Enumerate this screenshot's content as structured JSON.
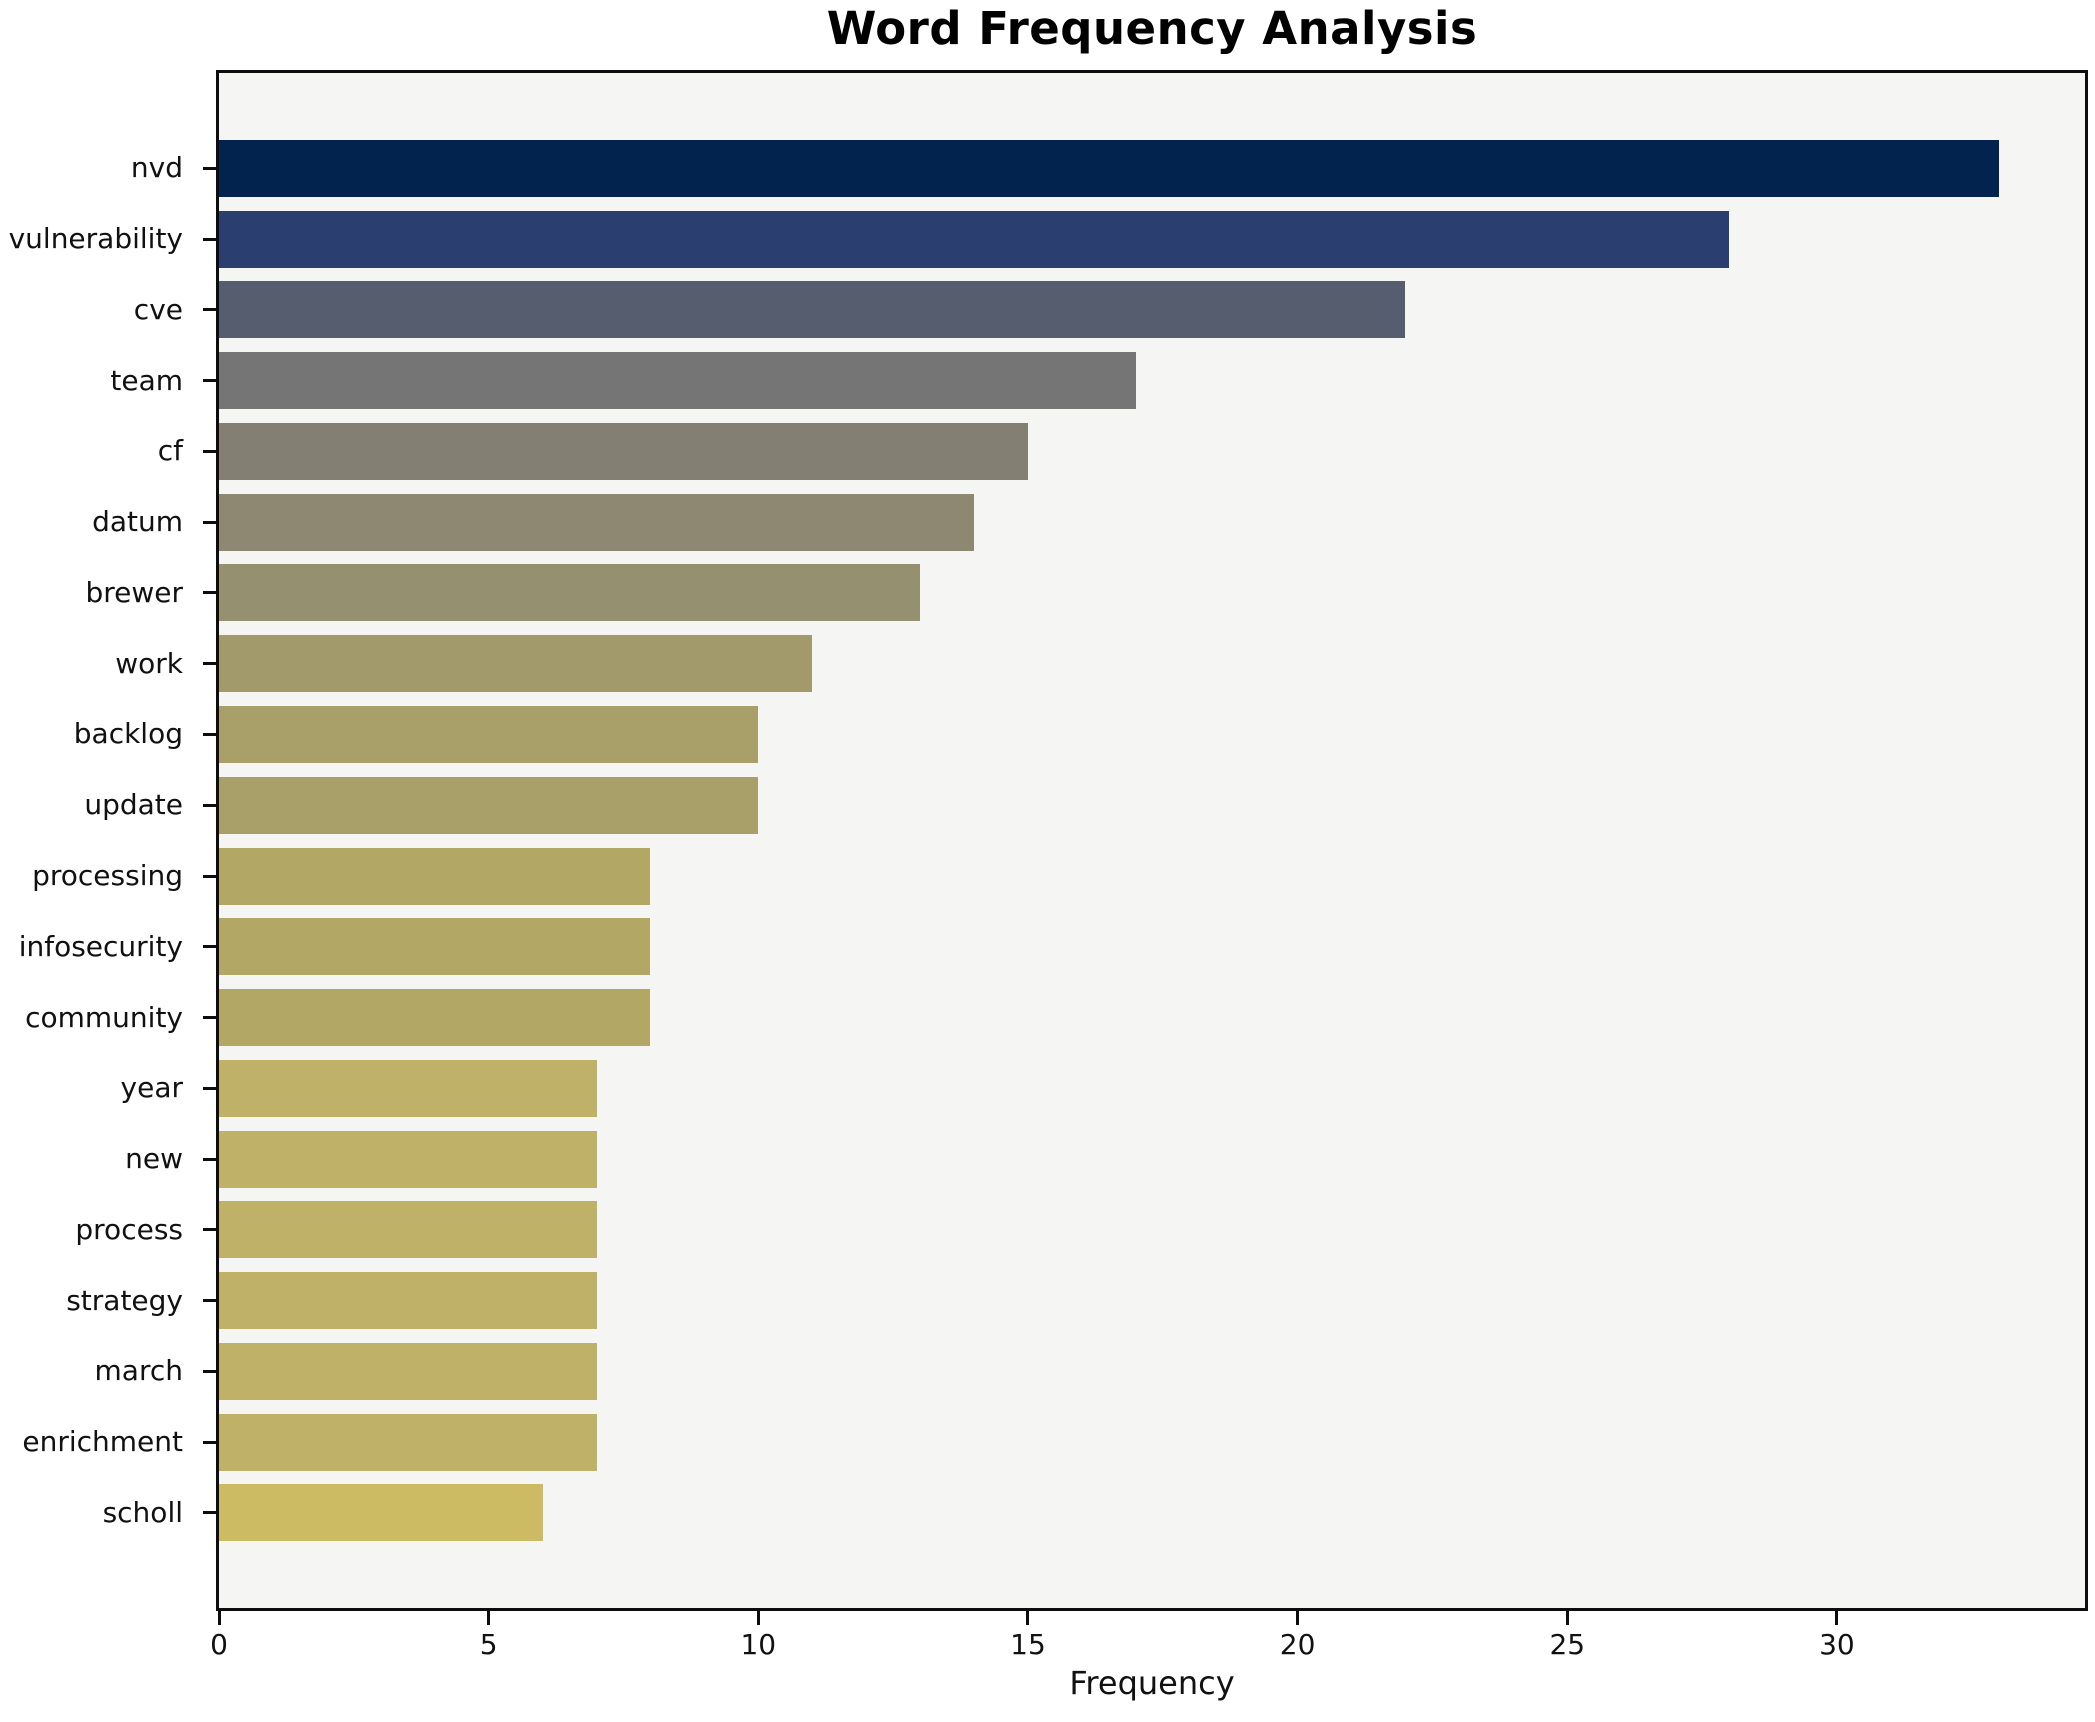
{
  "title": "Word Frequency Analysis",
  "chart_data": {
    "type": "bar",
    "orientation": "horizontal",
    "title": "Word Frequency Analysis",
    "xlabel": "Frequency",
    "ylabel": "",
    "categories": [
      "nvd",
      "vulnerability",
      "cve",
      "team",
      "cf",
      "datum",
      "brewer",
      "work",
      "backlog",
      "update",
      "processing",
      "infosecurity",
      "community",
      "year",
      "new",
      "process",
      "strategy",
      "march",
      "enrichment",
      "scholl"
    ],
    "values": [
      33,
      28,
      22,
      17,
      15,
      14,
      13,
      11,
      10,
      10,
      8,
      8,
      8,
      7,
      7,
      7,
      7,
      7,
      7,
      6
    ],
    "bar_colors": [
      "#01234e",
      "#2a3e6f",
      "#565d6e",
      "#757575",
      "#838073",
      "#8e8873",
      "#959070",
      "#a39a6b",
      "#a9a069",
      "#a9a069",
      "#b2a765",
      "#b2a765",
      "#b2a765",
      "#bfb168",
      "#bfb168",
      "#bfb168",
      "#bfb168",
      "#bfb168",
      "#bfb168",
      "#ccbb63"
    ],
    "xlim": [
      0,
      34.6
    ],
    "xticks": [
      0,
      5,
      10,
      15,
      20,
      25,
      30
    ],
    "grid": false,
    "legend": null,
    "colormap": "cividis",
    "plot_background": "#f5f5f3",
    "figure_background": "#ffffff",
    "spine_color": "#0d0d0d"
  }
}
